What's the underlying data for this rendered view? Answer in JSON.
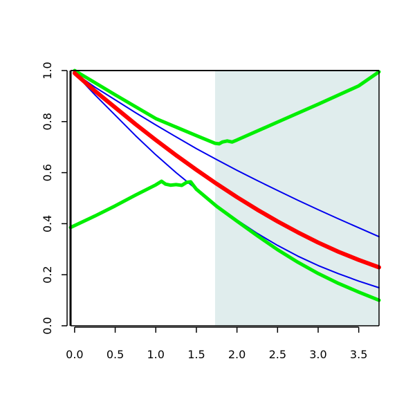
{
  "chart_data": {
    "type": "line",
    "title": "",
    "xlabel": "",
    "ylabel": "",
    "xlim": [
      -0.05,
      3.75
    ],
    "ylim": [
      0.0,
      1.0
    ],
    "x_ticks": [
      0.0,
      0.5,
      1.0,
      1.5,
      2.0,
      2.5,
      3.0,
      3.5
    ],
    "x_tick_labels": [
      "0.0",
      "0.5",
      "1.0",
      "1.5",
      "2.0",
      "2.5",
      "3.0",
      "3.5"
    ],
    "y_ticks": [
      0.0,
      0.2,
      0.4,
      0.6,
      0.8,
      1.0
    ],
    "y_tick_labels": [
      "0.0",
      "0.2",
      "0.4",
      "0.6",
      "0.8",
      "1.0"
    ],
    "grid": false,
    "legend": "none",
    "shaded_region": {
      "x_from": 1.73,
      "x_to": 3.75,
      "color": "#e0eded"
    },
    "series": [
      {
        "color": "#0000ee",
        "role": "upper blue band",
        "x": [
          0.0,
          0.25,
          0.5,
          0.75,
          1.0,
          1.25,
          1.5,
          1.75,
          2.0,
          2.25,
          2.5,
          2.75,
          3.0,
          3.25,
          3.5,
          3.75
        ],
        "y": [
          0.99,
          0.935,
          0.885,
          0.835,
          0.787,
          0.74,
          0.694,
          0.651,
          0.609,
          0.569,
          0.53,
          0.492,
          0.455,
          0.419,
          0.384,
          0.349
        ]
      },
      {
        "color": "#0000ee",
        "role": "lower blue band",
        "x": [
          0.0,
          0.25,
          0.5,
          0.75,
          1.0,
          1.25,
          1.5,
          1.75,
          2.0,
          2.25,
          2.5,
          2.75,
          3.0,
          3.25,
          3.5,
          3.75
        ],
        "y": [
          0.99,
          0.905,
          0.825,
          0.745,
          0.67,
          0.6,
          0.535,
          0.472,
          0.415,
          0.362,
          0.315,
          0.273,
          0.236,
          0.204,
          0.175,
          0.149
        ]
      },
      {
        "color": "#ff0000",
        "role": "center estimate",
        "x": [
          0.0,
          0.25,
          0.5,
          0.75,
          1.0,
          1.25,
          1.5,
          1.75,
          2.0,
          2.25,
          2.5,
          2.75,
          3.0,
          3.25,
          3.5,
          3.75
        ],
        "y": [
          0.99,
          0.92,
          0.855,
          0.79,
          0.728,
          0.668,
          0.611,
          0.556,
          0.504,
          0.455,
          0.409,
          0.366,
          0.326,
          0.29,
          0.258,
          0.229
        ]
      },
      {
        "color": "#00ee00",
        "role": "upper green band",
        "x": [
          0.0,
          0.5,
          1.0,
          1.5,
          1.73,
          1.78,
          1.82,
          1.88,
          1.94,
          2.0,
          2.5,
          3.0,
          3.5,
          3.75
        ],
        "y": [
          1.0,
          0.905,
          0.812,
          0.745,
          0.715,
          0.713,
          0.72,
          0.724,
          0.72,
          0.728,
          0.798,
          0.868,
          0.94,
          0.995
        ]
      },
      {
        "color": "#00ee00",
        "role": "lower green band",
        "x": [
          -0.05,
          0.25,
          0.5,
          0.75,
          1.0,
          1.07,
          1.12,
          1.18,
          1.25,
          1.32,
          1.38,
          1.43,
          1.5,
          1.75,
          2.0,
          2.25,
          2.5,
          2.75,
          3.0,
          3.25,
          3.5,
          3.75
        ],
        "y": [
          0.385,
          0.43,
          0.47,
          0.512,
          0.552,
          0.566,
          0.555,
          0.551,
          0.553,
          0.55,
          0.562,
          0.564,
          0.535,
          0.468,
          0.41,
          0.353,
          0.298,
          0.249,
          0.205,
          0.166,
          0.132,
          0.1
        ]
      }
    ]
  }
}
